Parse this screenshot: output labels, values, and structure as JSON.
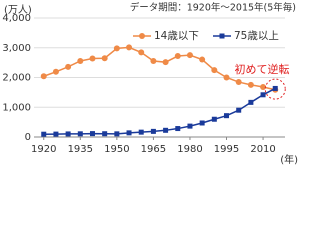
{
  "chart_data": {
    "type": "line",
    "subtitle": "データ期間：1920年～2015年(5年毎)",
    "y_label": "(万人)",
    "x_label": "(年)",
    "annotation": "初めて逆転",
    "x": [
      1920,
      1925,
      1930,
      1935,
      1940,
      1945,
      1950,
      1955,
      1960,
      1965,
      1970,
      1975,
      1980,
      1985,
      1990,
      1995,
      2000,
      2005,
      2010,
      2015
    ],
    "series": [
      {
        "name": "14歳以下",
        "color": "#ef8a47",
        "marker": "circle",
        "values": [
          2042,
          2192,
          2358,
          2555,
          2637,
          2648,
          2979,
          3012,
          2843,
          2553,
          2515,
          2722,
          2751,
          2603,
          2249,
          2001,
          1847,
          1752,
          1680,
          1589
        ]
      },
      {
        "name": "75歳以上",
        "color": "#1a3a9a",
        "marker": "square",
        "values": [
          94,
          97,
          103,
          107,
          114,
          110,
          106,
          139,
          163,
          189,
          225,
          284,
          366,
          471,
          597,
          717,
          901,
          1164,
          1419,
          1632
        ]
      }
    ],
    "xlim": [
      1916,
      2019
    ],
    "xticks": [
      1920,
      1935,
      1950,
      1965,
      1980,
      1995,
      2010
    ],
    "ylim": [
      0,
      4000
    ],
    "yticks": [
      0,
      {
        "value": 1000,
        "label": "1,000"
      },
      {
        "value": 2000,
        "label": "2,000"
      },
      {
        "value": 3000,
        "label": "3,000"
      },
      {
        "value": 4000,
        "label": "4,000"
      }
    ],
    "grid": true
  }
}
